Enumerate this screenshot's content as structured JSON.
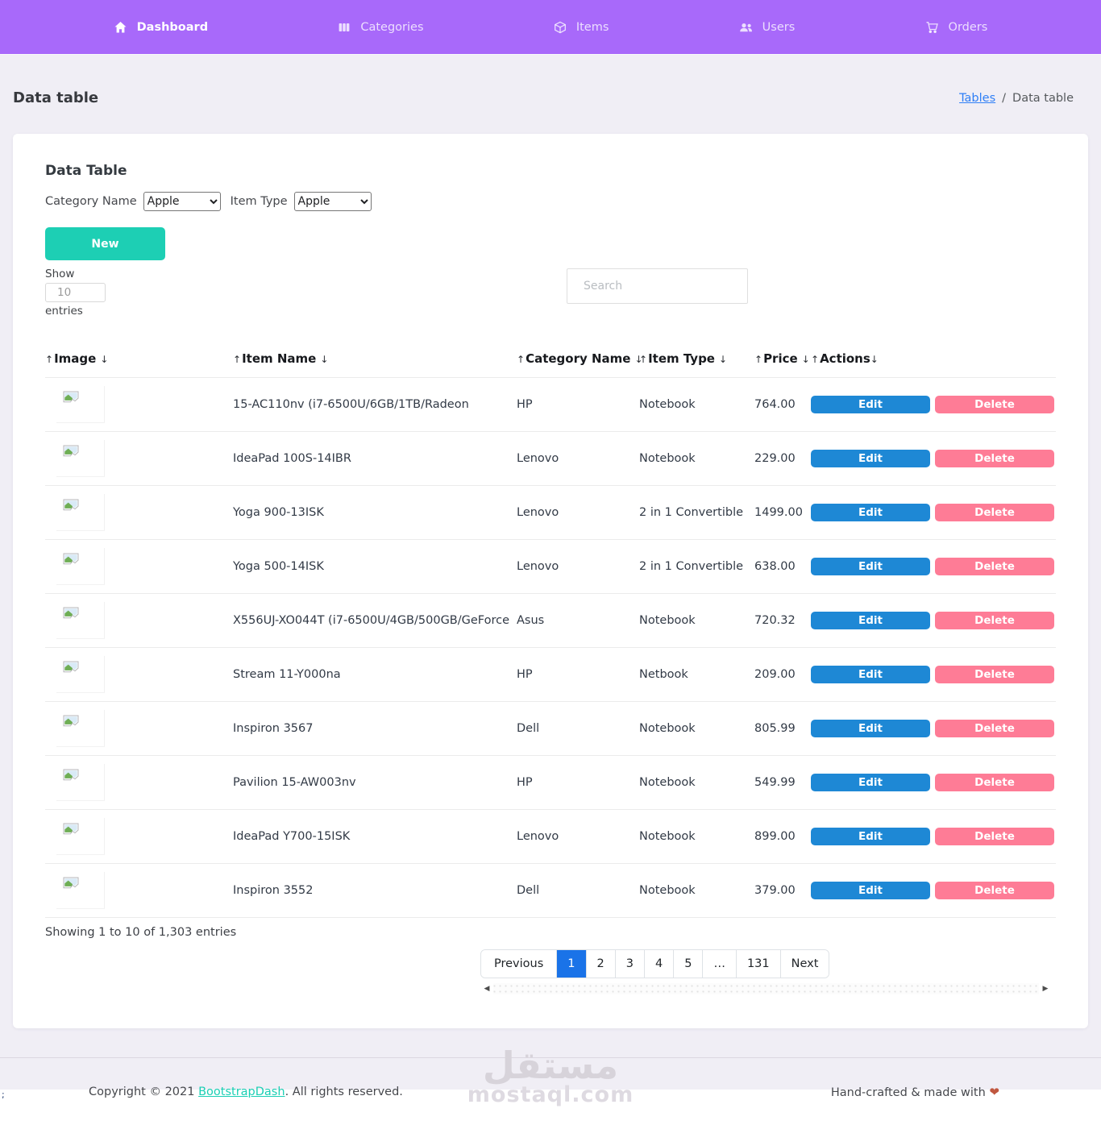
{
  "nav": {
    "items": [
      {
        "label": "Dashboard",
        "icon": "home-icon",
        "active": true
      },
      {
        "label": "Categories",
        "icon": "columns-icon",
        "active": false
      },
      {
        "label": "Items",
        "icon": "package-icon",
        "active": false
      },
      {
        "label": "Users",
        "icon": "users-icon",
        "active": false
      },
      {
        "label": "Orders",
        "icon": "cart-icon",
        "active": false
      }
    ]
  },
  "page": {
    "title": "Data table",
    "breadcrumb": {
      "link": "Tables",
      "separator": "/",
      "current": "Data table"
    }
  },
  "card": {
    "title": "Data Table",
    "filters": {
      "category_label": "Category Name",
      "category_value": "Apple",
      "item_type_label": "Item Type",
      "item_type_value": "Apple"
    },
    "new_button": "New",
    "show": {
      "prefix": "Show",
      "value": "10",
      "suffix": "entries"
    },
    "search_placeholder": "Search",
    "table": {
      "sort_asc": "↑",
      "sort_desc": "↓",
      "headers": [
        "Image",
        "Item Name",
        "Category Name",
        "Item Type",
        "Price",
        "Actions"
      ],
      "edit_label": "Edit",
      "delete_label": "Delete",
      "rows": [
        {
          "item_name": "15-AC110nv (i7-6500U/6GB/1TB/Radeon",
          "category": "HP",
          "item_type": "Notebook",
          "price": "764.00"
        },
        {
          "item_name": "IdeaPad 100S-14IBR",
          "category": "Lenovo",
          "item_type": "Notebook",
          "price": "229.00"
        },
        {
          "item_name": "Yoga 900-13ISK",
          "category": "Lenovo",
          "item_type": "2 in 1 Convertible",
          "price": "1499.00"
        },
        {
          "item_name": "Yoga 500-14ISK",
          "category": "Lenovo",
          "item_type": "2 in 1 Convertible",
          "price": "638.00"
        },
        {
          "item_name": "X556UJ-XO044T (i7-6500U/4GB/500GB/GeForce",
          "category": "Asus",
          "item_type": "Notebook",
          "price": "720.32"
        },
        {
          "item_name": "Stream 11-Y000na",
          "category": "HP",
          "item_type": "Netbook",
          "price": "209.00"
        },
        {
          "item_name": "Inspiron 3567",
          "category": "Dell",
          "item_type": "Notebook",
          "price": "805.99"
        },
        {
          "item_name": "Pavilion 15-AW003nv",
          "category": "HP",
          "item_type": "Notebook",
          "price": "549.99"
        },
        {
          "item_name": "IdeaPad Y700-15ISK",
          "category": "Lenovo",
          "item_type": "Notebook",
          "price": "899.00"
        },
        {
          "item_name": "Inspiron 3552",
          "category": "Dell",
          "item_type": "Notebook",
          "price": "379.00"
        }
      ]
    },
    "summary": "Showing 1 to 10 of 1,303 entries",
    "pagination": {
      "previous": "Previous",
      "pages": [
        "1",
        "2",
        "3",
        "4",
        "5",
        "…",
        "131"
      ],
      "active_page": "1",
      "next": "Next"
    },
    "scrollbar": {
      "left_arrow": "◀",
      "right_arrow": "▶"
    }
  },
  "footer": {
    "copyright_prefix": "Copyright © 2021 ",
    "copyright_link": "BootstrapDash",
    "copyright_suffix": ". All rights reserved.",
    "tagline": "Hand-crafted & made with",
    "heart": "❤"
  },
  "watermark": {
    "arabic": "مستقل",
    "latin": "mostaql.com"
  },
  "stray_text": ";",
  "colors": {
    "navbar": "#a869fa",
    "body_bg": "#f0eef5",
    "new_button": "#1dcfb4",
    "edit_button": "#1e88d5",
    "delete_button": "#fe7c96",
    "pagination_active": "#1a73e8",
    "breadcrumb_link": "#2f7ff6",
    "footer_link": "#1bcfb4",
    "heart": "#c0573f"
  }
}
